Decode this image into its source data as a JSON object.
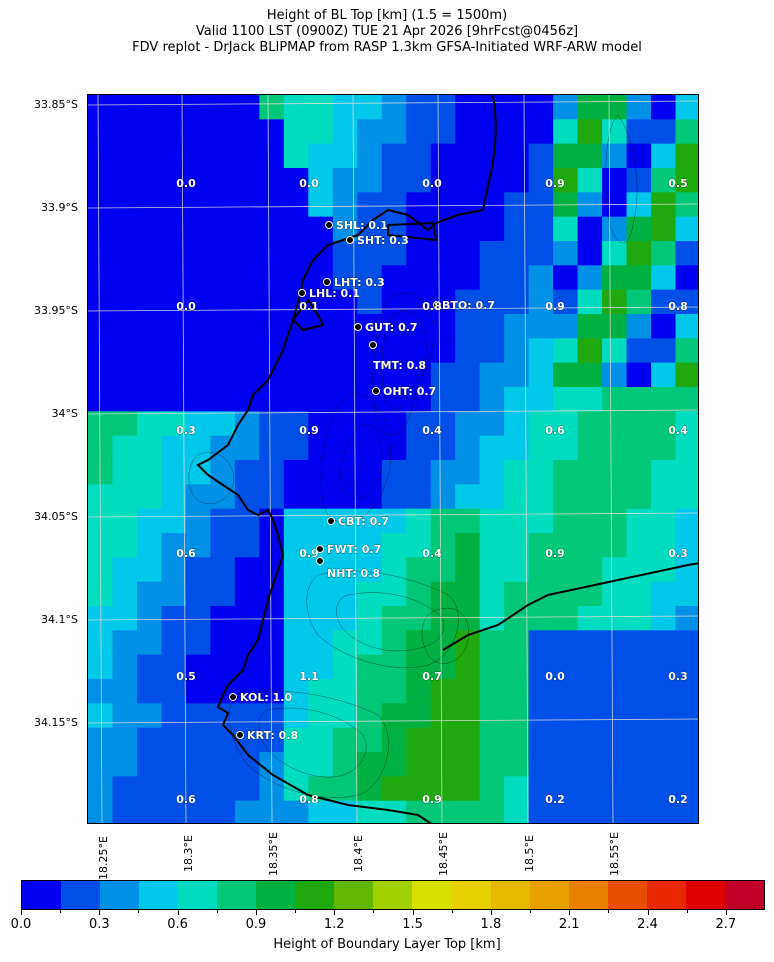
{
  "header": {
    "line1": "Height of BL Top [km] (1.5 = 1500m)",
    "line2": "Valid 1100 LST (0900Z) TUE 21 Apr 2026 [9hrFcst@0456z]",
    "line3": "FDV replot - DrJack BLIPMAP from RASP 1.3km GFSA-Initiated WRF-ARW model"
  },
  "axes": {
    "lat_labels": [
      "33.85°S",
      "33.9°S",
      "33.95°S",
      "34°S",
      "34.05°S",
      "34.1°S",
      "34.15°S"
    ],
    "lon_labels": [
      "18.25°E",
      "18.3°E",
      "18.35°E",
      "18.4°E",
      "18.45°E",
      "18.5°E",
      "18.55°E"
    ]
  },
  "grid_values": [
    [
      "0.0",
      "0.0",
      "0.0",
      "0.9",
      "0.5"
    ],
    [
      "0.0",
      "0.1",
      "0.8",
      "0.9",
      "0.8"
    ],
    [
      "0.3",
      "0.9",
      "0.4",
      "0.6",
      "0.4"
    ],
    [
      "0.6",
      "0.9",
      "0.4",
      "0.9",
      "0.3"
    ],
    [
      "0.5",
      "1.1",
      "0.7",
      "0.0",
      "0.3"
    ],
    [
      "0.6",
      "0.8",
      "0.9",
      "0.2",
      "0.2"
    ]
  ],
  "stations": [
    {
      "label": "SHL: 0.1"
    },
    {
      "label": "SHT: 0.3"
    },
    {
      "label": "LHT: 0.3"
    },
    {
      "label": "LHL: 0.1"
    },
    {
      "label": "BTO: 0.7"
    },
    {
      "label": "GUT: 0.7"
    },
    {
      "label": "TMT: 0.8"
    },
    {
      "label": "OHT: 0.7"
    },
    {
      "label": "CBT: 0.7"
    },
    {
      "label": "FWT: 0.7"
    },
    {
      "label": "NHT: 0.8"
    },
    {
      "label": "KOL: 1.0"
    },
    {
      "label": "KRT: 0.8"
    }
  ],
  "colorbar": {
    "title": "Height of Boundary Layer Top [km]",
    "tick_labels": [
      "0.0",
      "0.3",
      "0.6",
      "0.9",
      "1.2",
      "1.5",
      "1.8",
      "2.1",
      "2.4",
      "2.7"
    ],
    "colors": [
      "#0000f0",
      "#0050e8",
      "#0090e8",
      "#00c8e8",
      "#00dcc0",
      "#00c878",
      "#00b040",
      "#20a810",
      "#60b800",
      "#a0d000",
      "#d8e000",
      "#e8d000",
      "#e8b800",
      "#e8a000",
      "#e88000",
      "#e85000",
      "#e82800",
      "#e00000",
      "#c00028"
    ]
  }
}
